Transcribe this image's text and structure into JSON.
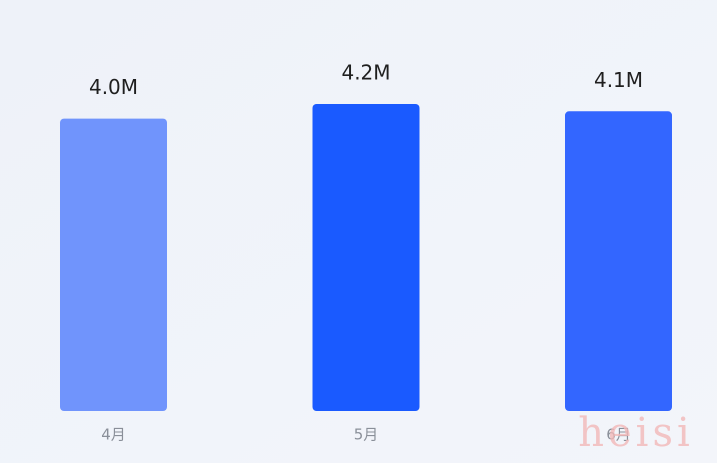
{
  "chart_data": {
    "type": "bar",
    "categories": [
      "4月",
      "5月",
      "6月"
    ],
    "values": [
      4.0,
      4.2,
      4.1
    ],
    "value_labels": [
      "4.0M",
      "4.2M",
      "4.1M"
    ],
    "colors": [
      "#7094fc",
      "#1a5aff",
      "#3366ff"
    ],
    "watermark": "heisi"
  }
}
